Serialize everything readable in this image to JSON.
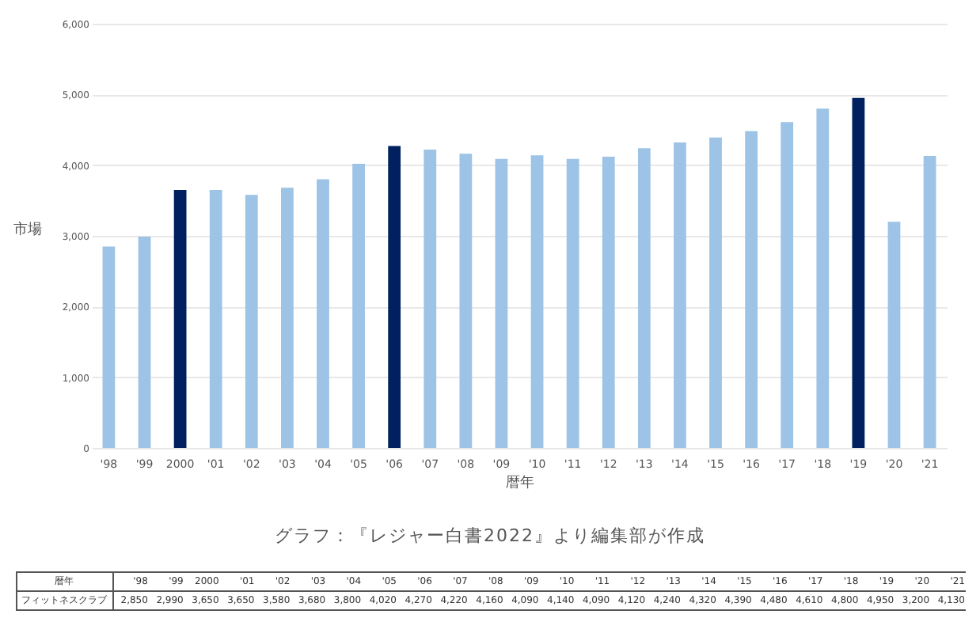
{
  "chart_data": {
    "type": "bar",
    "categories": [
      "'98",
      "'99",
      "2000",
      "'01",
      "'02",
      "'03",
      "'04",
      "'05",
      "'06",
      "'07",
      "'08",
      "'09",
      "'10",
      "'11",
      "'12",
      "'13",
      "'14",
      "'15",
      "'16",
      "'17",
      "'18",
      "'19",
      "'20",
      "'21"
    ],
    "series": [
      {
        "name": "フィットネスクラブ",
        "values": [
          2850,
          2990,
          3650,
          3650,
          3580,
          3680,
          3800,
          4020,
          4270,
          4220,
          4160,
          4090,
          4140,
          4090,
          4120,
          4240,
          4320,
          4390,
          4480,
          4610,
          4800,
          4950,
          3200,
          4130
        ],
        "colors": [
          "#9dc3e6",
          "#9dc3e6",
          "#002060",
          "#9dc3e6",
          "#9dc3e6",
          "#9dc3e6",
          "#9dc3e6",
          "#9dc3e6",
          "#002060",
          "#9dc3e6",
          "#9dc3e6",
          "#9dc3e6",
          "#9dc3e6",
          "#9dc3e6",
          "#9dc3e6",
          "#9dc3e6",
          "#9dc3e6",
          "#9dc3e6",
          "#9dc3e6",
          "#9dc3e6",
          "#9dc3e6",
          "#002060",
          "#9dc3e6",
          "#9dc3e6"
        ]
      }
    ],
    "xlabel": "暦年",
    "ylabel": "市場",
    "ylim": [
      0,
      6000
    ],
    "yticks": [
      {
        "value": 0,
        "label": "0"
      },
      {
        "value": 1000,
        "label": "1,000"
      },
      {
        "value": 2000,
        "label": "2,000"
      },
      {
        "value": 3000,
        "label": "3,000"
      },
      {
        "value": 4000,
        "label": "4,000"
      },
      {
        "value": 5000,
        "label": "5,000"
      },
      {
        "value": 6000,
        "label": "6,000"
      }
    ],
    "value_labels": [
      "2,850",
      "2,990",
      "3,650",
      "3,650",
      "3,580",
      "3,680",
      "3,800",
      "4,020",
      "4,270",
      "4,220",
      "4,160",
      "4,090",
      "4,140",
      "4,090",
      "4,120",
      "4,240",
      "4,320",
      "4,390",
      "4,480",
      "4,610",
      "4,800",
      "4,950",
      "3,200",
      "4,130"
    ],
    "grid": "y",
    "annotations": [
      "グラフ：『レジャー白書2022』より編集部が作成"
    ]
  }
}
